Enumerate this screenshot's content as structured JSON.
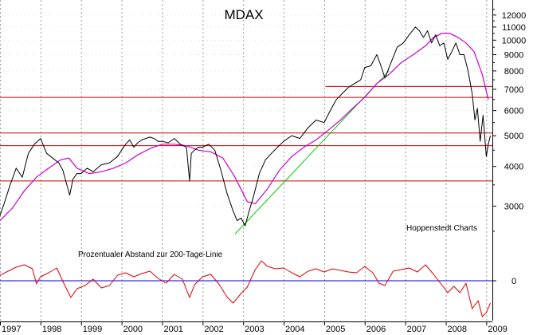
{
  "chart_data": {
    "type": "line",
    "title": "MDAX",
    "source_label": "Hoppenstedt Charts",
    "lower_panel_label": "Prozentualer Abstand zur 200-Tage-Linie",
    "colors": {
      "index": "#000000",
      "ma200": "#cc00cc",
      "support": "#cc0000",
      "trend": "#00cc00",
      "deviation": "#dd0000",
      "zero_line": "#0000cc",
      "grid": "#9a9a9a"
    },
    "x_axis": {
      "range": [
        1997.0,
        2009.15
      ],
      "tick_labels": [
        "1997",
        "1998",
        "1999",
        "2000",
        "2001",
        "2002",
        "2003",
        "2004",
        "2005",
        "2006",
        "2007",
        "2008",
        "2009"
      ],
      "tick_values": [
        1997,
        1998,
        1999,
        2000,
        2001,
        2002,
        2003,
        2004,
        2005,
        2006,
        2007,
        2008,
        2009
      ]
    },
    "y_axis_upper": {
      "scale": "log",
      "range": [
        2200,
        13000
      ],
      "tick_labels": [
        "3000",
        "4000",
        "5000",
        "6000",
        "7000",
        "8000",
        "9000",
        "10000",
        "11000",
        "12000"
      ],
      "tick_values": [
        3000,
        4000,
        5000,
        6000,
        7000,
        8000,
        9000,
        10000,
        11000,
        12000
      ]
    },
    "y_axis_lower": {
      "range": [
        -50,
        40
      ],
      "tick_labels": [
        "0"
      ],
      "tick_values": [
        0
      ]
    },
    "series": [
      {
        "name": "MDAX",
        "x": [
          1997.0,
          1997.1,
          1997.25,
          1997.4,
          1997.55,
          1997.7,
          1997.85,
          1998.0,
          1998.15,
          1998.3,
          1998.45,
          1998.55,
          1998.65,
          1998.72,
          1998.8,
          1998.9,
          1999.0,
          1999.15,
          1999.3,
          1999.5,
          1999.7,
          1999.9,
          2000.0,
          2000.1,
          2000.2,
          2000.3,
          2000.4,
          2000.5,
          2000.6,
          2000.7,
          2000.8,
          2000.9,
          2001.0,
          2001.15,
          2001.3,
          2001.45,
          2001.6,
          2001.68,
          2001.72,
          2001.8,
          2001.9,
          2002.0,
          2002.15,
          2002.3,
          2002.45,
          2002.6,
          2002.75,
          2002.85,
          2002.95,
          2003.05,
          2003.15,
          2003.25,
          2003.4,
          2003.55,
          2003.7,
          2003.85,
          2004.0,
          2004.2,
          2004.4,
          2004.6,
          2004.8,
          2005.0,
          2005.15,
          2005.3,
          2005.45,
          2005.6,
          2005.75,
          2005.9,
          2006.0,
          2006.15,
          2006.3,
          2006.4,
          2006.5,
          2006.65,
          2006.8,
          2006.95,
          2007.1,
          2007.25,
          2007.35,
          2007.45,
          2007.55,
          2007.65,
          2007.75,
          2007.85,
          2007.95,
          2008.05,
          2008.15,
          2008.25,
          2008.35,
          2008.45,
          2008.55,
          2008.65,
          2008.72,
          2008.78,
          2008.85,
          2008.92,
          2009.0,
          2009.05,
          2009.1
        ],
        "values": [
          2800,
          3050,
          3500,
          3950,
          3700,
          4400,
          4700,
          4900,
          4400,
          4250,
          4100,
          3900,
          3500,
          3250,
          3650,
          3800,
          3800,
          3950,
          3850,
          4050,
          4100,
          4300,
          4500,
          4700,
          4850,
          4600,
          4750,
          4850,
          4900,
          4950,
          4900,
          4800,
          4800,
          4750,
          4900,
          4700,
          4600,
          3600,
          4400,
          4500,
          4600,
          4600,
          4700,
          4500,
          3900,
          3300,
          2900,
          2700,
          2750,
          2600,
          2900,
          3200,
          3800,
          4200,
          4400,
          4600,
          4800,
          5000,
          4900,
          5300,
          5600,
          5500,
          6000,
          6500,
          6800,
          7100,
          7300,
          7500,
          8200,
          8300,
          9000,
          8300,
          7600,
          8500,
          9500,
          9800,
          10400,
          11000,
          10700,
          10200,
          10700,
          9800,
          10400,
          9600,
          9800,
          8700,
          9200,
          9800,
          9000,
          9000,
          8000,
          6800,
          5600,
          6100,
          4800,
          5800,
          4300,
          4700,
          5000
        ]
      },
      {
        "name": "200-Tage-Linie",
        "x": [
          1997.0,
          1997.3,
          1997.6,
          1997.9,
          1998.2,
          1998.5,
          1998.7,
          1998.9,
          1999.2,
          1999.5,
          1999.8,
          2000.1,
          2000.4,
          2000.7,
          2001.0,
          2001.3,
          2001.6,
          2001.9,
          2002.2,
          2002.5,
          2002.8,
          2003.1,
          2003.3,
          2003.6,
          2003.9,
          2004.2,
          2004.5,
          2004.8,
          2005.1,
          2005.4,
          2005.7,
          2006.0,
          2006.3,
          2006.6,
          2006.9,
          2007.2,
          2007.5,
          2007.7,
          2007.9,
          2008.1,
          2008.3,
          2008.5,
          2008.7,
          2008.9,
          2009.05
        ],
        "values": [
          2700,
          2950,
          3350,
          3700,
          3950,
          4200,
          4250,
          3950,
          3800,
          3850,
          3950,
          4100,
          4350,
          4550,
          4700,
          4700,
          4650,
          4500,
          4450,
          4250,
          3700,
          3100,
          3050,
          3400,
          3900,
          4300,
          4600,
          4850,
          5200,
          5600,
          6100,
          6600,
          7300,
          7800,
          8500,
          9000,
          9600,
          10200,
          10500,
          10500,
          10200,
          9800,
          9200,
          7800,
          6500
        ]
      },
      {
        "name": "Prozentualer Abstand zur 200-Tage-Linie",
        "x": [
          1997.0,
          1997.2,
          1997.4,
          1997.6,
          1997.8,
          1997.9,
          1998.0,
          1998.2,
          1998.4,
          1998.6,
          1998.75,
          1998.9,
          1999.1,
          1999.3,
          1999.5,
          1999.7,
          1999.9,
          2000.1,
          2000.3,
          2000.5,
          2000.7,
          2000.9,
          2001.1,
          2001.3,
          2001.5,
          2001.68,
          2001.8,
          2002.0,
          2002.2,
          2002.4,
          2002.6,
          2002.75,
          2002.95,
          2003.1,
          2003.3,
          2003.45,
          2003.6,
          2003.8,
          2004.0,
          2004.2,
          2004.4,
          2004.6,
          2004.8,
          2005.0,
          2005.2,
          2005.4,
          2005.6,
          2005.8,
          2006.0,
          2006.2,
          2006.35,
          2006.5,
          2006.7,
          2006.9,
          2007.1,
          2007.3,
          2007.5,
          2007.7,
          2007.9,
          2008.05,
          2008.2,
          2008.35,
          2008.5,
          2008.65,
          2008.8,
          2008.9,
          2009.0,
          2009.1
        ],
        "values": [
          7,
          12,
          17,
          20,
          15,
          -4,
          5,
          10,
          16,
          -6,
          -21,
          -10,
          -6,
          2,
          -9,
          -6,
          7,
          10,
          5,
          9,
          12,
          3,
          -3,
          8,
          2,
          -21,
          -5,
          5,
          8,
          -4,
          -20,
          -28,
          -16,
          -8,
          14,
          25,
          18,
          15,
          16,
          10,
          5,
          12,
          15,
          11,
          15,
          13,
          11,
          10,
          18,
          10,
          -3,
          -6,
          12,
          14,
          16,
          11,
          20,
          8,
          -5,
          -15,
          -7,
          -15,
          -3,
          -35,
          -25,
          -45,
          -40,
          -28
        ]
      }
    ],
    "support_levels": [
      {
        "value": 7150,
        "x_start": 2005.03,
        "x_end": 2009.15
      },
      {
        "value": 6600,
        "x_start": 1997.0,
        "x_end": 2009.15
      },
      {
        "value": 5100,
        "x_start": 1997.0,
        "x_end": 2009.15
      },
      {
        "value": 4650,
        "x_start": 1997.0,
        "x_end": 2009.15
      },
      {
        "value": 3600,
        "x_start": 1997.0,
        "x_end": 2009.15
      }
    ],
    "trend_line": {
      "x": [
        2002.8,
        2006.6
      ],
      "values": [
        2450,
        8000
      ]
    }
  }
}
